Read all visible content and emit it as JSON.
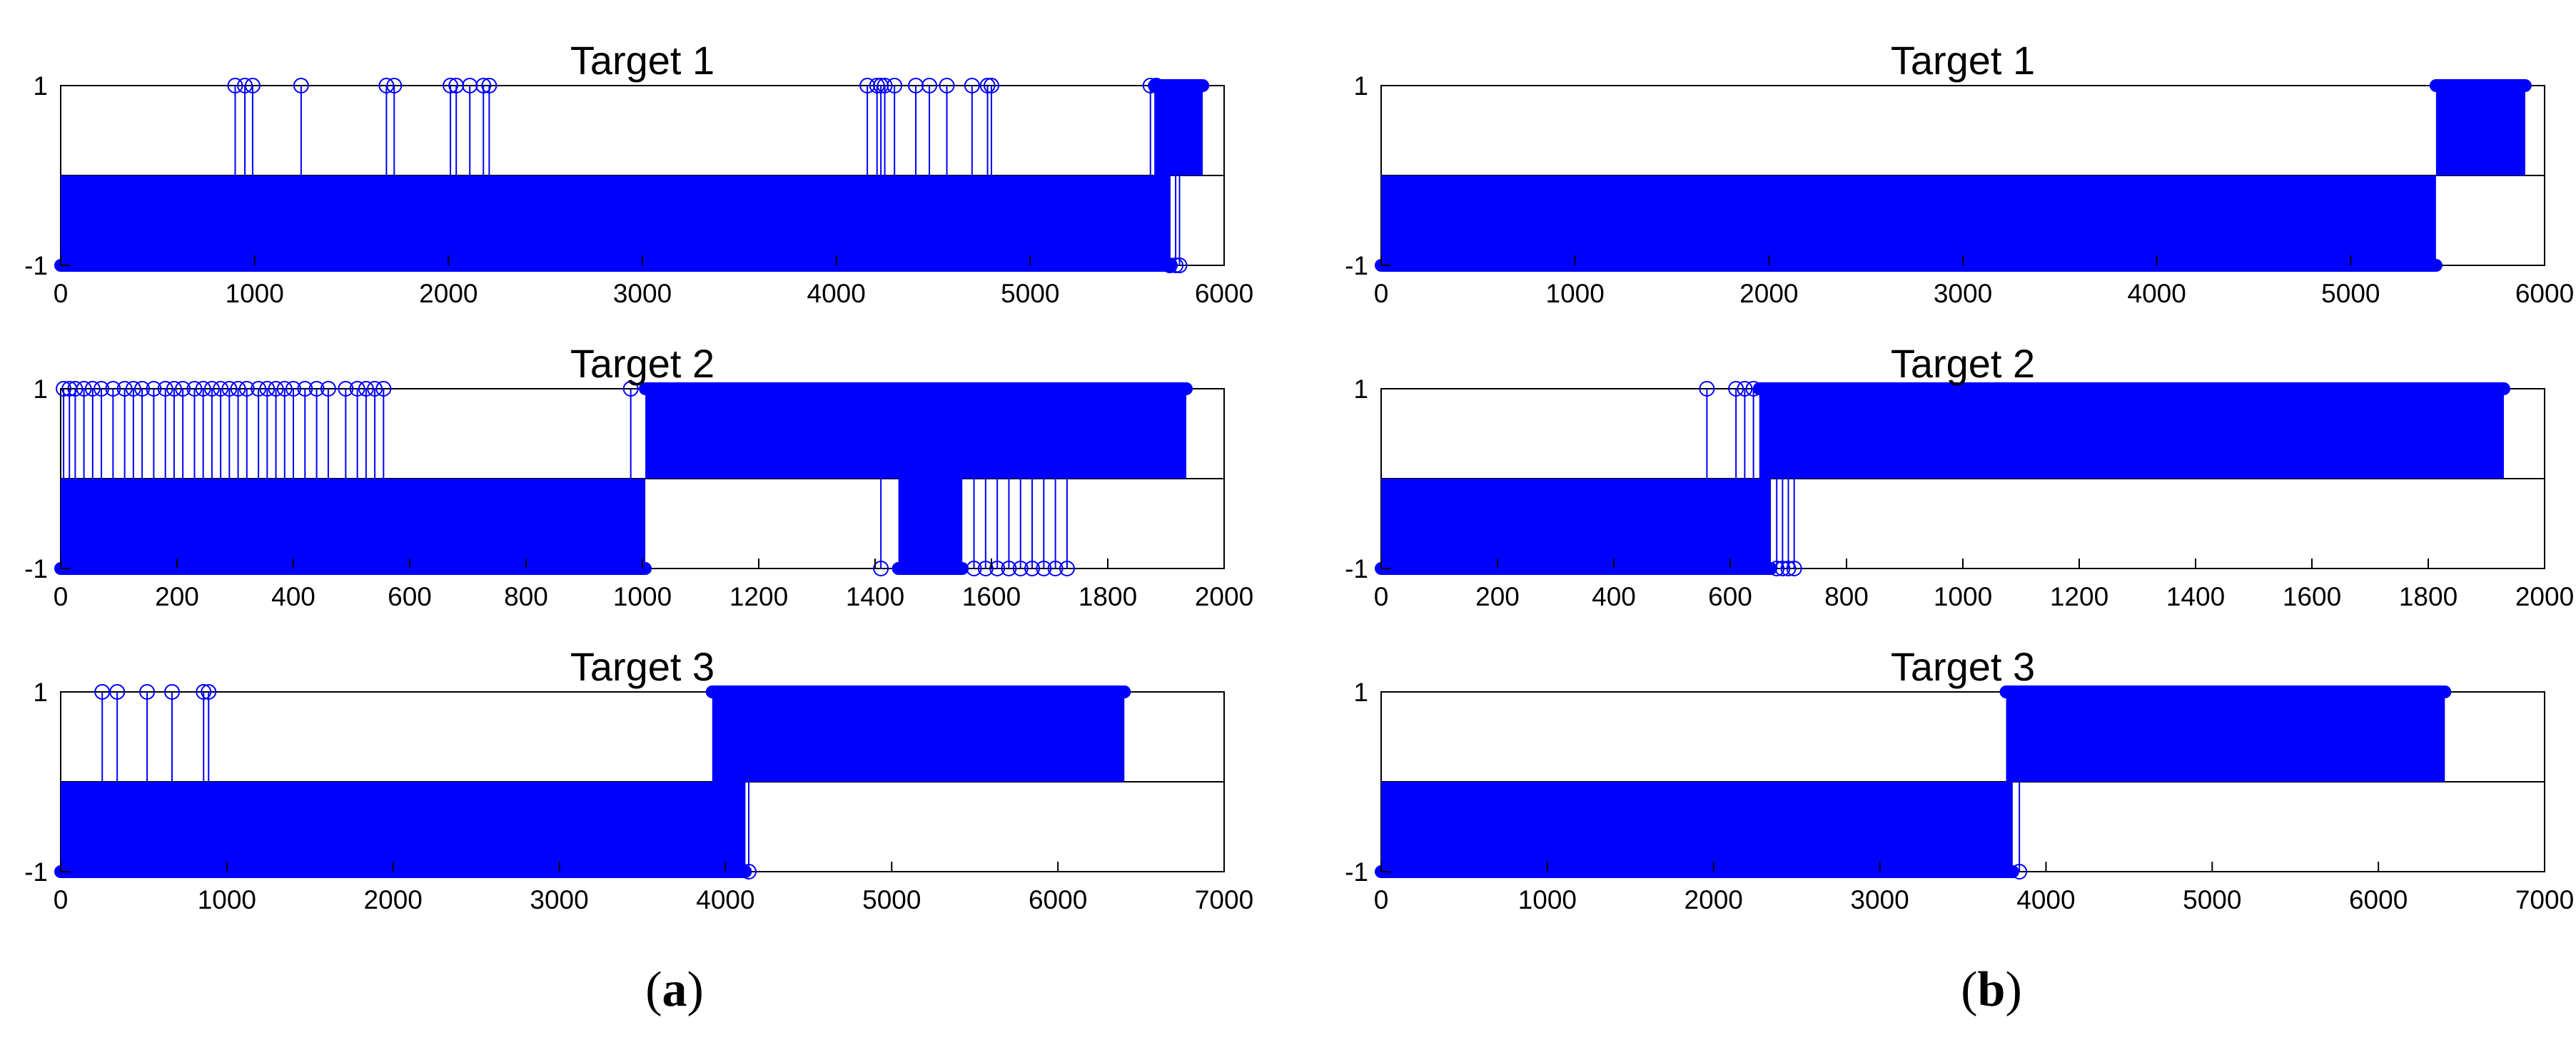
{
  "figure": {
    "captions": [
      {
        "open": "(",
        "letter": "a",
        "close": ")"
      },
      {
        "open": "(",
        "letter": "b",
        "close": ")"
      }
    ]
  },
  "chart_data": [
    {
      "type": "stem",
      "panel": "a",
      "title": "Target 1",
      "xlim": [
        0,
        6000
      ],
      "ylim": [
        -1,
        1
      ],
      "xticks": [
        0,
        1000,
        2000,
        3000,
        4000,
        5000,
        6000
      ],
      "yticks": [
        -1,
        1
      ],
      "color": "#0000ff",
      "segments": [
        {
          "from": 0,
          "to": 5720,
          "y": -1
        },
        {
          "from": 5640,
          "to": 5890,
          "y": 1
        }
      ],
      "sparse_positive": [
        900,
        950,
        990,
        1240,
        1680,
        1720,
        2010,
        2040,
        2110,
        2180,
        2210,
        4160,
        4210,
        4230,
        4250,
        4300,
        4410,
        4480,
        4570,
        4700,
        4780,
        4800,
        5620,
        5650
      ],
      "sparse_negative": [
        5720,
        5750,
        5770
      ]
    },
    {
      "type": "stem",
      "panel": "a",
      "title": "Target 2",
      "xlim": [
        0,
        2000
      ],
      "ylim": [
        -1,
        1
      ],
      "xticks": [
        0,
        200,
        400,
        600,
        800,
        1000,
        1200,
        1400,
        1600,
        1800,
        2000
      ],
      "yticks": [
        -1,
        1
      ],
      "color": "#0000ff",
      "segments": [
        {
          "from": 0,
          "to": 1005,
          "y": -1
        },
        {
          "from": 1005,
          "to": 1935,
          "y": 1
        },
        {
          "from": 1440,
          "to": 1550,
          "y": -1
        }
      ],
      "sparse_positive": [
        5,
        15,
        25,
        40,
        55,
        70,
        90,
        110,
        125,
        140,
        160,
        180,
        195,
        210,
        230,
        245,
        260,
        275,
        290,
        305,
        320,
        340,
        355,
        370,
        385,
        400,
        420,
        440,
        460,
        490,
        510,
        525,
        540,
        555,
        980
      ],
      "sparse_negative": [
        1410,
        1570,
        1590,
        1610,
        1630,
        1650,
        1670,
        1690,
        1710,
        1730
      ]
    },
    {
      "type": "stem",
      "panel": "a",
      "title": "Target 3",
      "xlim": [
        0,
        7000
      ],
      "ylim": [
        -1,
        1
      ],
      "xticks": [
        0,
        1000,
        2000,
        3000,
        4000,
        5000,
        6000,
        7000
      ],
      "yticks": [
        -1,
        1
      ],
      "color": "#0000ff",
      "segments": [
        {
          "from": 0,
          "to": 4120,
          "y": -1
        },
        {
          "from": 3920,
          "to": 6400,
          "y": 1
        }
      ],
      "sparse_positive": [
        250,
        340,
        520,
        670,
        860,
        890
      ],
      "sparse_negative": [
        4140
      ]
    },
    {
      "type": "stem",
      "panel": "b",
      "title": "Target 1",
      "xlim": [
        0,
        6000
      ],
      "ylim": [
        -1,
        1
      ],
      "xticks": [
        0,
        1000,
        2000,
        3000,
        4000,
        5000,
        6000
      ],
      "yticks": [
        -1,
        1
      ],
      "color": "#0000ff",
      "segments": [
        {
          "from": 0,
          "to": 5440,
          "y": -1
        },
        {
          "from": 5440,
          "to": 5900,
          "y": 1
        }
      ],
      "sparse_positive": [],
      "sparse_negative": []
    },
    {
      "type": "stem",
      "panel": "b",
      "title": "Target 2",
      "xlim": [
        0,
        2000
      ],
      "ylim": [
        -1,
        1
      ],
      "xticks": [
        0,
        200,
        400,
        600,
        800,
        1000,
        1200,
        1400,
        1600,
        1800,
        2000
      ],
      "yticks": [
        -1,
        1
      ],
      "color": "#0000ff",
      "segments": [
        {
          "from": 0,
          "to": 670,
          "y": -1
        },
        {
          "from": 650,
          "to": 1930,
          "y": 1
        }
      ],
      "sparse_positive": [
        560,
        610,
        625,
        640
      ],
      "sparse_negative": [
        680,
        690,
        700,
        710
      ]
    },
    {
      "type": "stem",
      "panel": "b",
      "title": "Target 3",
      "xlim": [
        0,
        7000
      ],
      "ylim": [
        -1,
        1
      ],
      "xticks": [
        0,
        1000,
        2000,
        3000,
        4000,
        5000,
        6000,
        7000
      ],
      "yticks": [
        -1,
        1
      ],
      "color": "#0000ff",
      "segments": [
        {
          "from": 0,
          "to": 3800,
          "y": -1
        },
        {
          "from": 3760,
          "to": 6400,
          "y": 1
        }
      ],
      "sparse_positive": [],
      "sparse_negative": [
        3840
      ]
    }
  ]
}
